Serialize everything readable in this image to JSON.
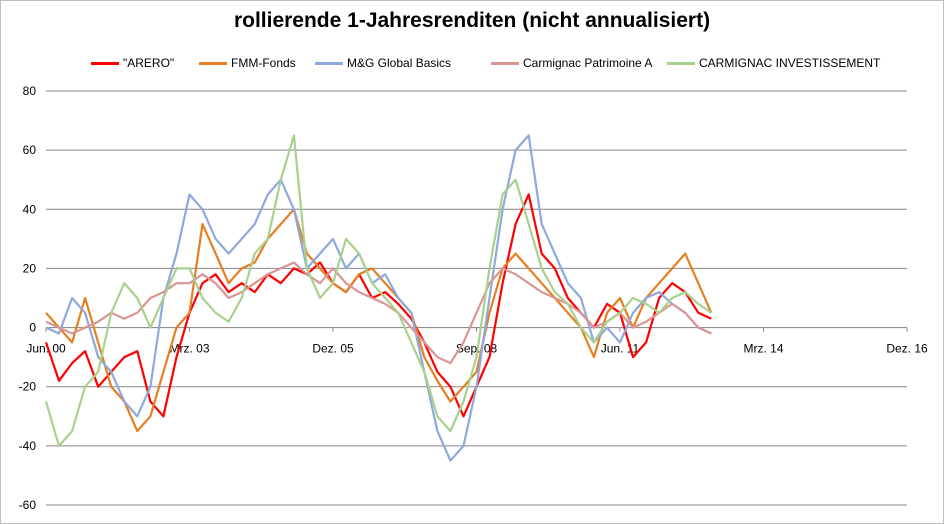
{
  "chart_data": {
    "type": "line",
    "title": "rollierende 1-Jahresrenditen (nicht annualisiert)",
    "xlabel": "",
    "ylabel": "",
    "ylim": [
      -60,
      80
    ],
    "yticks": [
      80,
      60,
      40,
      20,
      0,
      -20,
      -40,
      -60
    ],
    "xticks": [
      "Jun. 00",
      "Mrz. 03",
      "Dez. 05",
      "Sep. 08",
      "Jun. 11",
      "Mrz. 14",
      "Dez. 16"
    ],
    "x_range": [
      "2000-06",
      "2016-12"
    ],
    "grid": "horizontal",
    "legend_position": "top",
    "x": [
      "2000-06",
      "2000-09",
      "2000-12",
      "2001-03",
      "2001-06",
      "2001-09",
      "2001-12",
      "2002-03",
      "2002-06",
      "2002-09",
      "2002-12",
      "2003-03",
      "2003-06",
      "2003-09",
      "2003-12",
      "2004-03",
      "2004-06",
      "2004-09",
      "2004-12",
      "2005-03",
      "2005-06",
      "2005-09",
      "2005-12",
      "2006-03",
      "2006-06",
      "2006-09",
      "2006-12",
      "2007-03",
      "2007-06",
      "2007-09",
      "2007-12",
      "2008-03",
      "2008-06",
      "2008-09",
      "2008-12",
      "2009-03",
      "2009-06",
      "2009-09",
      "2009-12",
      "2010-03",
      "2010-06",
      "2010-09",
      "2010-12",
      "2011-03",
      "2011-06",
      "2011-09",
      "2011-12",
      "2012-03",
      "2012-06",
      "2012-09",
      "2012-12",
      "2013-03"
    ],
    "series": [
      {
        "name": "\"ARERO\"",
        "color": "#ff0000",
        "values": [
          -5,
          -18,
          -12,
          -8,
          -20,
          -15,
          -10,
          -8,
          -25,
          -30,
          -10,
          5,
          15,
          18,
          12,
          15,
          12,
          18,
          15,
          20,
          18,
          22,
          15,
          12,
          18,
          10,
          12,
          8,
          3,
          -5,
          -15,
          -20,
          -30,
          -20,
          -10,
          15,
          35,
          45,
          25,
          20,
          10,
          5,
          0,
          8,
          5,
          -10,
          -5,
          10,
          15,
          12,
          5,
          3
        ]
      },
      {
        "name": "FMM-Fonds",
        "color": "#e67e22",
        "values": [
          5,
          0,
          -5,
          10,
          -5,
          -20,
          -25,
          -35,
          -30,
          -15,
          0,
          5,
          35,
          25,
          15,
          20,
          22,
          30,
          35,
          40,
          25,
          20,
          15,
          12,
          18,
          20,
          15,
          10,
          5,
          -10,
          -18,
          -25,
          -20,
          -15,
          5,
          20,
          25,
          20,
          15,
          10,
          5,
          0,
          -10,
          5,
          10,
          0,
          10,
          15,
          20,
          25,
          15,
          5
        ]
      },
      {
        "name": "M&G Global Basics",
        "color": "#8ea9db",
        "values": [
          0,
          -2,
          10,
          5,
          -10,
          -15,
          -25,
          -30,
          -20,
          10,
          25,
          45,
          40,
          30,
          25,
          30,
          35,
          45,
          50,
          40,
          20,
          25,
          30,
          20,
          25,
          15,
          18,
          10,
          5,
          -15,
          -35,
          -45,
          -40,
          -20,
          10,
          40,
          60,
          65,
          35,
          25,
          15,
          10,
          -5,
          0,
          -5,
          5,
          10,
          12,
          8,
          5,
          0,
          -2
        ]
      },
      {
        "name": "Carmignac Patrimoine A",
        "color": "#d99694",
        "values": [
          2,
          0,
          -2,
          0,
          2,
          5,
          3,
          5,
          10,
          12,
          15,
          15,
          18,
          15,
          10,
          12,
          15,
          18,
          20,
          22,
          18,
          15,
          20,
          15,
          12,
          10,
          8,
          5,
          0,
          -5,
          -10,
          -12,
          -5,
          5,
          15,
          20,
          18,
          15,
          12,
          10,
          8,
          5,
          0,
          2,
          5,
          0,
          2,
          5,
          8,
          5,
          0,
          -2
        ]
      },
      {
        "name": "CARMIGNAC INVESTISSEMENT",
        "color": "#a9d18e",
        "values": [
          -25,
          -40,
          -35,
          -20,
          -15,
          5,
          15,
          10,
          0,
          10,
          20,
          20,
          10,
          5,
          2,
          10,
          25,
          30,
          50,
          65,
          20,
          10,
          15,
          30,
          25,
          15,
          10,
          5,
          -5,
          -15,
          -30,
          -35,
          -25,
          -10,
          20,
          45,
          50,
          35,
          20,
          12,
          8,
          0,
          -5,
          2,
          5,
          10,
          8,
          5,
          10,
          12,
          8,
          5
        ]
      }
    ]
  }
}
